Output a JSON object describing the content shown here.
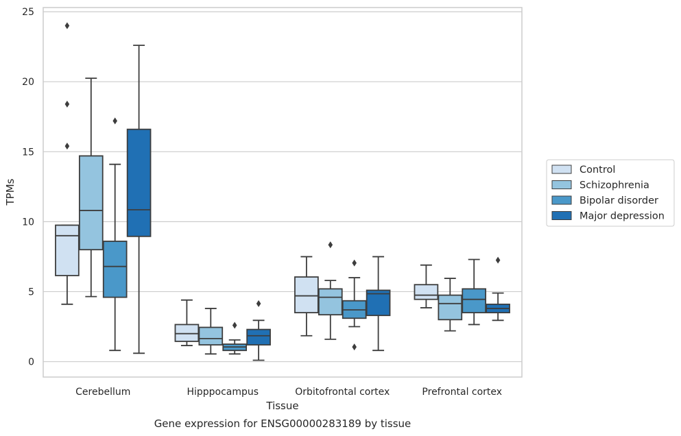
{
  "chart_data": {
    "type": "box",
    "xlabel": "Tissue",
    "ylabel": "TPMs",
    "caption": "Gene expression for ENSG00000283189 by tissue",
    "ylim": [
      -1.1,
      25.3
    ],
    "yticks": [
      0,
      5,
      10,
      15,
      20,
      25
    ],
    "grid": "horizontal",
    "legend_position": "right",
    "categories": [
      "Cerebellum",
      "Hipppocampus",
      "Orbitofrontal cortex",
      "Prefrontal cortex"
    ],
    "series": [
      {
        "name": "Control",
        "color": "#d0e1f2",
        "boxes": [
          {
            "min": 4.1,
            "q1": 6.15,
            "median": 9.0,
            "q3": 9.75,
            "max": 9.75,
            "outliers": [
              24.0,
              18.4,
              15.4
            ]
          },
          {
            "min": 1.15,
            "q1": 1.45,
            "median": 2.0,
            "q3": 2.65,
            "max": 4.4,
            "outliers": []
          },
          {
            "min": 1.85,
            "q1": 3.5,
            "median": 4.7,
            "q3": 6.05,
            "max": 7.5,
            "outliers": []
          },
          {
            "min": 3.85,
            "q1": 4.45,
            "median": 4.75,
            "q3": 5.5,
            "max": 6.9,
            "outliers": []
          }
        ]
      },
      {
        "name": "Schizophrenia",
        "color": "#94c4df",
        "boxes": [
          {
            "min": 4.65,
            "q1": 8.0,
            "median": 10.8,
            "q3": 14.7,
            "max": 20.25,
            "outliers": []
          },
          {
            "min": 0.55,
            "q1": 1.2,
            "median": 1.65,
            "q3": 2.45,
            "max": 3.8,
            "outliers": []
          },
          {
            "min": 1.6,
            "q1": 3.35,
            "median": 4.6,
            "q3": 5.2,
            "max": 5.8,
            "outliers": [
              8.35
            ]
          },
          {
            "min": 2.2,
            "q1": 3.0,
            "median": 4.15,
            "q3": 4.75,
            "max": 5.95,
            "outliers": []
          }
        ]
      },
      {
        "name": "Bipolar disorder",
        "color": "#4a98c9",
        "boxes": [
          {
            "min": 0.8,
            "q1": 4.6,
            "median": 6.8,
            "q3": 8.6,
            "max": 14.1,
            "outliers": [
              17.2
            ]
          },
          {
            "min": 0.55,
            "q1": 0.8,
            "median": 1.05,
            "q3": 1.25,
            "max": 1.55,
            "outliers": [
              2.6
            ]
          },
          {
            "min": 2.5,
            "q1": 3.1,
            "median": 3.7,
            "q3": 4.35,
            "max": 6.0,
            "outliers": [
              7.05,
              1.05
            ]
          },
          {
            "min": 2.65,
            "q1": 3.5,
            "median": 4.45,
            "q3": 5.2,
            "max": 7.3,
            "outliers": []
          }
        ]
      },
      {
        "name": "Major depression",
        "color": "#2070b4",
        "boxes": [
          {
            "min": 0.6,
            "q1": 8.95,
            "median": 10.85,
            "q3": 16.6,
            "max": 22.6,
            "outliers": []
          },
          {
            "min": 0.1,
            "q1": 1.2,
            "median": 1.85,
            "q3": 2.3,
            "max": 2.95,
            "outliers": [
              4.15
            ]
          },
          {
            "min": 0.8,
            "q1": 3.3,
            "median": 4.85,
            "q3": 5.1,
            "max": 7.5,
            "outliers": []
          },
          {
            "min": 2.95,
            "q1": 3.5,
            "median": 3.8,
            "q3": 4.1,
            "max": 4.9,
            "outliers": [
              7.25
            ]
          }
        ]
      }
    ]
  }
}
